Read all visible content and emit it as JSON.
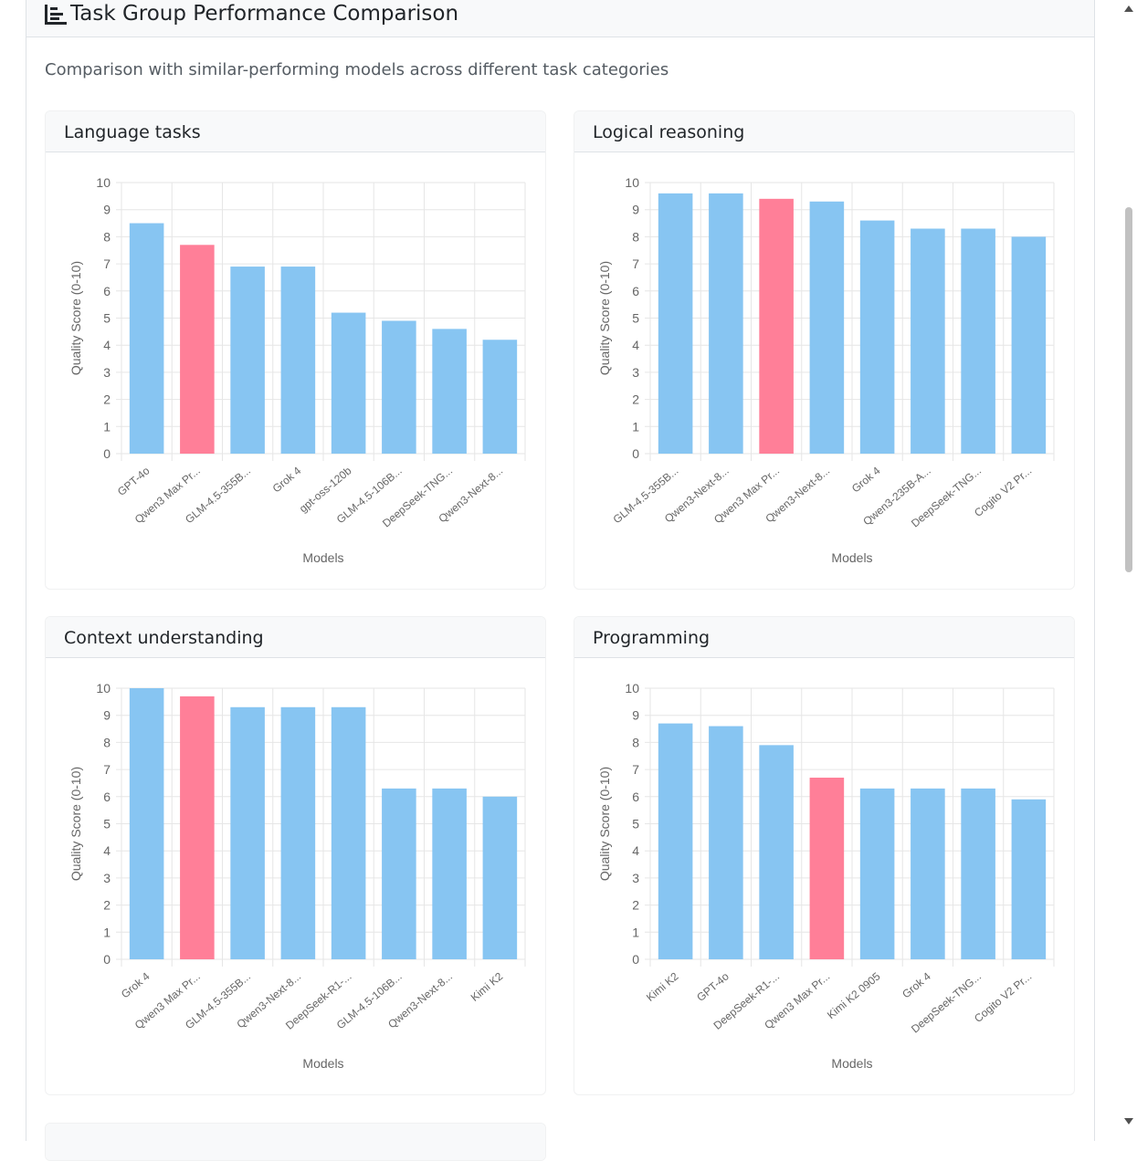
{
  "page": {
    "title": "Task Group Performance Comparison",
    "subtitle": "Comparison with similar-performing models across different task categories",
    "title_icon": "bar-chart-icon",
    "scroll_icons": [
      "scroll-up-icon",
      "scroll-down-icon"
    ]
  },
  "colors": {
    "bar_default": "#87c5f2",
    "bar_highlight": "#ff7f98",
    "grid": "#e6e6e6",
    "axis_text": "#666666"
  },
  "chart_data": [
    {
      "type": "bar",
      "title": "Language tasks",
      "xlabel": "Models",
      "ylabel": "Quality Score (0-10)",
      "ylim": [
        0,
        10
      ],
      "yticks": [
        "0",
        "1",
        "2",
        "3",
        "4",
        "5",
        "6",
        "7",
        "8",
        "9",
        "10"
      ],
      "grid": true,
      "categories": [
        "GPT-4o",
        "Qwen3 Max Pr...",
        "GLM-4.5-355B...",
        "Grok 4",
        "gpt-oss-120b",
        "GLM-4.5-106B...",
        "DeepSeek-TNG...",
        "Qwen3-Next-8..."
      ],
      "values": [
        8.5,
        7.7,
        6.9,
        6.9,
        5.2,
        4.9,
        4.6,
        4.2
      ],
      "highlight_index": 1
    },
    {
      "type": "bar",
      "title": "Logical reasoning",
      "xlabel": "Models",
      "ylabel": "Quality Score (0-10)",
      "ylim": [
        0,
        10
      ],
      "yticks": [
        "0",
        "1",
        "2",
        "3",
        "4",
        "5",
        "6",
        "7",
        "8",
        "9",
        "10"
      ],
      "grid": true,
      "categories": [
        "GLM-4.5-355B...",
        "Qwen3-Next-8...",
        "Qwen3 Max Pr...",
        "Qwen3-Next-8...",
        "Grok 4",
        "Qwen3-235B-A...",
        "DeepSeek-TNG...",
        "Cogito V2 Pr..."
      ],
      "values": [
        9.6,
        9.6,
        9.4,
        9.3,
        8.6,
        8.3,
        8.3,
        8.0
      ],
      "highlight_index": 2
    },
    {
      "type": "bar",
      "title": "Context understanding",
      "xlabel": "Models",
      "ylabel": "Quality Score (0-10)",
      "ylim": [
        0,
        10
      ],
      "yticks": [
        "0",
        "1",
        "2",
        "3",
        "4",
        "5",
        "6",
        "7",
        "8",
        "9",
        "10"
      ],
      "grid": true,
      "categories": [
        "Grok 4",
        "Qwen3 Max Pr...",
        "GLM-4.5-355B...",
        "Qwen3-Next-8...",
        "DeepSeek-R1-...",
        "GLM-4.5-106B...",
        "Qwen3-Next-8...",
        "Kimi K2"
      ],
      "values": [
        10.0,
        9.7,
        9.3,
        9.3,
        9.3,
        6.3,
        6.3,
        6.0
      ],
      "highlight_index": 1
    },
    {
      "type": "bar",
      "title": "Programming",
      "xlabel": "Models",
      "ylabel": "Quality Score (0-10)",
      "ylim": [
        0,
        10
      ],
      "yticks": [
        "0",
        "1",
        "2",
        "3",
        "4",
        "5",
        "6",
        "7",
        "8",
        "9",
        "10"
      ],
      "grid": true,
      "categories": [
        "Kimi K2",
        "GPT-4o",
        "DeepSeek-R1-...",
        "Qwen3 Max Pr...",
        "Kimi K2 0905",
        "Grok 4",
        "DeepSeek-TNG...",
        "Cogito V2 Pr..."
      ],
      "values": [
        8.7,
        8.6,
        7.9,
        6.7,
        6.3,
        6.3,
        6.3,
        5.9
      ],
      "highlight_index": 3
    }
  ]
}
